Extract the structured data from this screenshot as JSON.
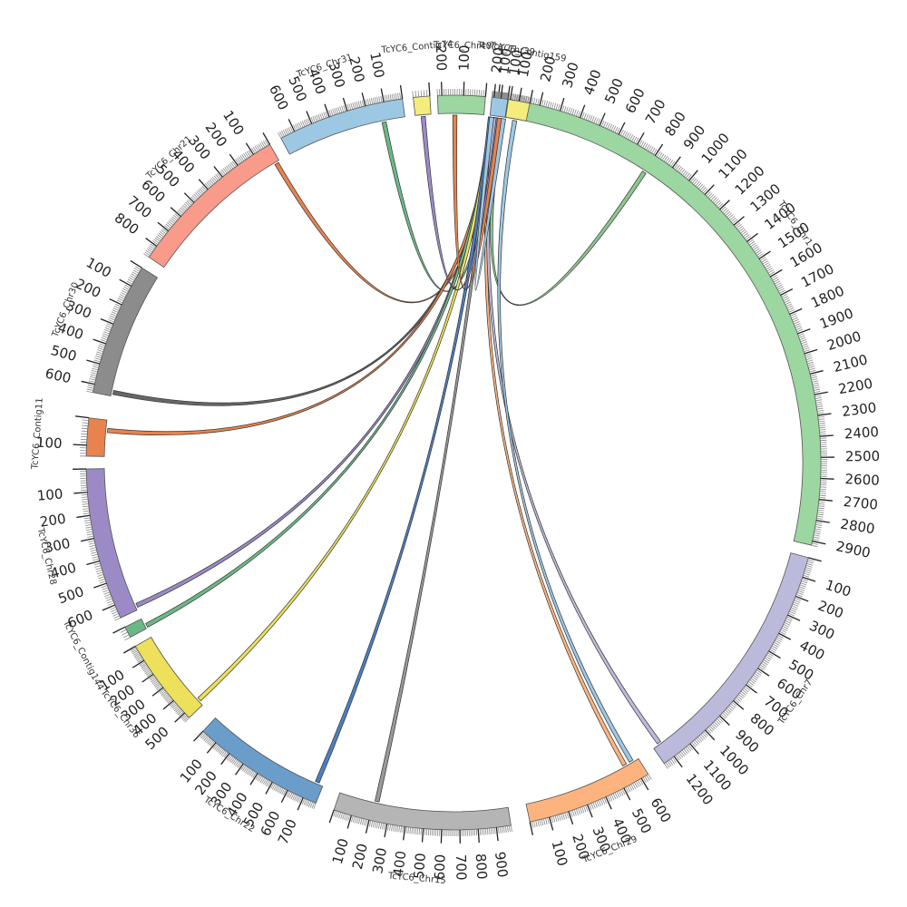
{
  "diagram": {
    "type": "circos",
    "tick_major": 100,
    "tick_minor": 10,
    "segments": [
      {
        "id": "s1",
        "name": "TcYC6_Chr1",
        "start": 0,
        "end": 2920,
        "color": "#9cd6a0"
      },
      {
        "id": "s2",
        "name": "TcYC6_Chr7",
        "start": 0,
        "end": 1260,
        "color": "#bcbadb"
      },
      {
        "id": "s3",
        "name": "TcYC6_Chr29",
        "start": 0,
        "end": 640,
        "color": "#fdb37e"
      },
      {
        "id": "s4",
        "name": "TcYC6_Chr15",
        "start": 0,
        "end": 980,
        "color": "#b5b5b5"
      },
      {
        "id": "s5",
        "name": "TcYC6_Chr22",
        "start": 0,
        "end": 780,
        "color": "#6b9dcb"
      },
      {
        "id": "s6",
        "name": "TcYC6_Chr36",
        "start": 0,
        "end": 540,
        "color": "#ede05a"
      },
      {
        "id": "s7",
        "name": "TcYC6_Contig144",
        "start": 0,
        "end": 40,
        "color": "#6bb886"
      },
      {
        "id": "s8",
        "name": "TcYC6_Chr28",
        "start": 0,
        "end": 660,
        "color": "#9b8ac6"
      },
      {
        "id": "s9",
        "name": "TcYC6_Contig11",
        "start": 0,
        "end": 140,
        "color": "#e8834d"
      },
      {
        "id": "s10",
        "name": "TcYC6_Chr30",
        "start": 0,
        "end": 640,
        "color": "#8c8c8c"
      },
      {
        "id": "s11",
        "name": "TcYC6_Chr21",
        "start": 0,
        "end": 870,
        "color": "#f89b8a"
      },
      {
        "id": "s12",
        "name": "TcYC6_Chr31",
        "start": 0,
        "end": 680,
        "color": "#9dc8e4"
      },
      {
        "id": "s13",
        "name": "TcYC6_Contig74",
        "start": 0,
        "end": 60,
        "color": "#f4ec7c"
      },
      {
        "id": "s14",
        "name": "TcYC6_Chr40",
        "start": 0,
        "end": 220,
        "color": "#9cd6a0"
      },
      {
        "id": "s15",
        "name": "TcYC6_Chr39",
        "start": 0,
        "end": 230,
        "color": "#9dc8e4"
      },
      {
        "id": "s16",
        "name": "TcYC6_Contig159",
        "start": 0,
        "end": 110,
        "color": "#f4ec7c"
      }
    ],
    "links": [
      {
        "from": "s15",
        "from_pos": 60,
        "to": "s1",
        "to_pos": 800,
        "color": "#8dc68e"
      },
      {
        "from": "s15",
        "from_pos": 120,
        "to": "s12",
        "to_pos": 120,
        "color": "#6bb886"
      },
      {
        "from": "s15",
        "from_pos": 140,
        "to": "s11",
        "to_pos": 20,
        "color": "#e8834d"
      },
      {
        "from": "s15",
        "from_pos": 160,
        "to": "s10",
        "to_pos": 620,
        "color": "#666666"
      },
      {
        "from": "s15",
        "from_pos": 180,
        "to": "s9",
        "to_pos": 40,
        "color": "#e8834d"
      },
      {
        "from": "s15",
        "from_pos": 200,
        "to": "s8",
        "to_pos": 640,
        "color": "#9b8ac6"
      },
      {
        "from": "s15",
        "from_pos": 210,
        "to": "s7",
        "to_pos": 30,
        "color": "#6bb886"
      },
      {
        "from": "s15",
        "from_pos": 215,
        "to": "s6",
        "to_pos": 500,
        "color": "#ede05a"
      },
      {
        "from": "s15",
        "from_pos": 220,
        "to": "s5",
        "to_pos": 740,
        "color": "#4d7fbf"
      },
      {
        "from": "s15",
        "from_pos": 190,
        "to": "s4",
        "to_pos": 220,
        "color": "#999999"
      },
      {
        "from": "s15",
        "from_pos": 170,
        "to": "s3",
        "to_pos": 560,
        "color": "#fdb37e"
      },
      {
        "from": "s15",
        "from_pos": 150,
        "to": "s2",
        "to_pos": 1220,
        "color": "#bcbadb"
      },
      {
        "from": "s15",
        "from_pos": 100,
        "to": "s13",
        "to_pos": 30,
        "color": "#9b8ac6"
      },
      {
        "from": "s15",
        "from_pos": 80,
        "to": "s14",
        "to_pos": 140,
        "color": "#e8834d"
      },
      {
        "from": "s16",
        "from_pos": 60,
        "to": "s3",
        "to_pos": 600,
        "color": "#9dc8e4"
      },
      {
        "from": "s15",
        "from_pos": 20,
        "to": "s15",
        "to_pos": 200,
        "color": "#9dc8e4"
      }
    ]
  }
}
